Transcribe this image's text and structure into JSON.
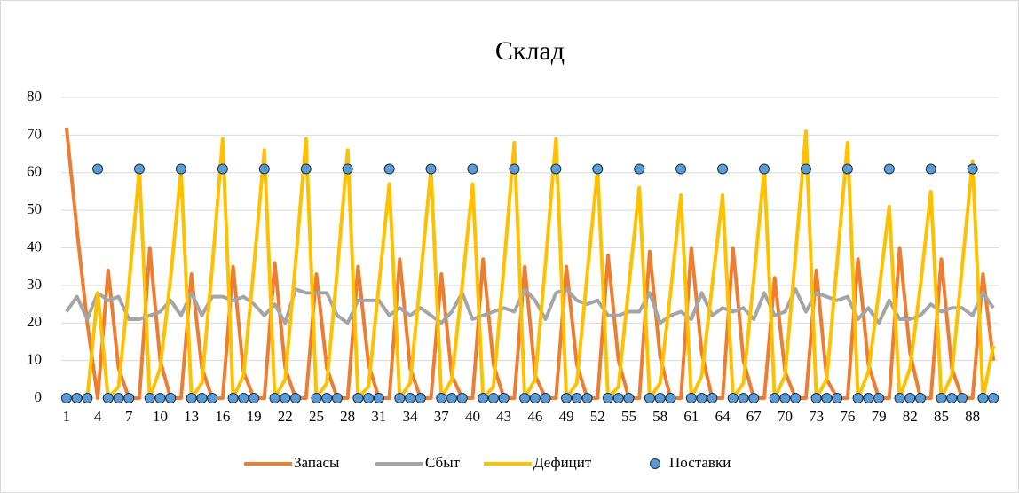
{
  "chart_data": {
    "type": "line",
    "title": "Склад",
    "categories": [
      1,
      null,
      null,
      4,
      null,
      null,
      7,
      null,
      null,
      10,
      null,
      null,
      13,
      null,
      null,
      16,
      null,
      null,
      19,
      null,
      null,
      22,
      null,
      null,
      25,
      null,
      null,
      28,
      null,
      null,
      31,
      null,
      null,
      34,
      null,
      null,
      37,
      null,
      null,
      40,
      null,
      null,
      43,
      null,
      null,
      46,
      null,
      null,
      49,
      null,
      null,
      52,
      null,
      null,
      55,
      null,
      null,
      58,
      null,
      null,
      61,
      null,
      null,
      64,
      null,
      null,
      67,
      null,
      null,
      70,
      null,
      null,
      73,
      null,
      null,
      76,
      null,
      null,
      79,
      null,
      null,
      82,
      null,
      null,
      85,
      null,
      null,
      88,
      null,
      null
    ],
    "series": [
      {
        "name": "Запасы",
        "color": "#ed7d31",
        "mode": "lines",
        "values": [
          72,
          45,
          20,
          0,
          34,
          8,
          0,
          0,
          40,
          10,
          0,
          0,
          33,
          8,
          0,
          0,
          35,
          7,
          0,
          0,
          36,
          8,
          0,
          0,
          33,
          8,
          0,
          0,
          35,
          9,
          0,
          0,
          37,
          8,
          0,
          0,
          33,
          6,
          0,
          0,
          37,
          9,
          0,
          0,
          35,
          6,
          0,
          0,
          35,
          9,
          0,
          0,
          38,
          10,
          0,
          0,
          39,
          11,
          0,
          0,
          40,
          12,
          0,
          0,
          40,
          10,
          0,
          0,
          32,
          7,
          0,
          0,
          34,
          5,
          0,
          0,
          37,
          9,
          0,
          0,
          40,
          12,
          0,
          0,
          37,
          8,
          0,
          0,
          33,
          10
        ]
      },
      {
        "name": "Сбыт",
        "color": "#a5a5a5",
        "mode": "lines",
        "values": [
          23,
          27,
          21,
          28,
          26,
          27,
          21,
          21,
          22,
          23,
          26,
          22,
          28,
          22,
          27,
          27,
          26,
          27,
          25,
          22,
          25,
          20,
          29,
          28,
          28,
          28,
          22,
          20,
          26,
          26,
          26,
          22,
          24,
          22,
          24,
          22,
          20,
          23,
          28,
          21,
          22,
          23,
          24,
          23,
          29,
          26,
          21,
          28,
          29,
          26,
          25,
          26,
          22,
          22,
          23,
          23,
          28,
          20,
          22,
          23,
          21,
          28,
          22,
          24,
          23,
          24,
          21,
          28,
          22,
          23,
          29,
          23,
          28,
          27,
          26,
          27,
          21,
          24,
          20,
          26,
          21,
          21,
          22,
          25,
          23,
          24,
          24,
          22,
          28,
          24
        ]
      },
      {
        "name": "Дефицит",
        "color": "#ffc000",
        "mode": "lines",
        "values": [
          0,
          0,
          0,
          28,
          0,
          3,
          30,
          61,
          0,
          8,
          32,
          61,
          0,
          4,
          35,
          69,
          0,
          6,
          35,
          66,
          0,
          5,
          36,
          69,
          0,
          4,
          34,
          66,
          0,
          3,
          30,
          57,
          0,
          4,
          32,
          61,
          0,
          5,
          30,
          57,
          0,
          3,
          35,
          68,
          0,
          5,
          36,
          69,
          0,
          4,
          33,
          61,
          0,
          3,
          30,
          56,
          0,
          4,
          28,
          54,
          0,
          6,
          30,
          54,
          0,
          4,
          32,
          61,
          0,
          6,
          38,
          71,
          0,
          5,
          36,
          68,
          0,
          7,
          28,
          51,
          0,
          8,
          30,
          55,
          0,
          6,
          35,
          63,
          0,
          14
        ]
      },
      {
        "name": "Поставки",
        "color": "#5b9bd5",
        "mode": "markers",
        "values": [
          0,
          0,
          0,
          61,
          0,
          0,
          0,
          61,
          0,
          0,
          0,
          61,
          0,
          0,
          0,
          61,
          0,
          0,
          0,
          61,
          0,
          0,
          0,
          61,
          0,
          0,
          0,
          61,
          0,
          0,
          0,
          61,
          0,
          0,
          0,
          61,
          0,
          0,
          0,
          61,
          0,
          0,
          0,
          61,
          0,
          0,
          0,
          61,
          0,
          0,
          0,
          61,
          0,
          0,
          0,
          61,
          0,
          0,
          0,
          61,
          0,
          0,
          0,
          61,
          0,
          0,
          0,
          61,
          0,
          0,
          0,
          61,
          0,
          0,
          0,
          61,
          0,
          0,
          0,
          61,
          0,
          0,
          0,
          61,
          0,
          0,
          0,
          61,
          0,
          0
        ]
      }
    ],
    "ylim": [
      0,
      80
    ],
    "yticks": [
      0,
      10,
      20,
      30,
      40,
      50,
      60,
      70,
      80
    ],
    "grid": true,
    "legend": "bottom"
  }
}
